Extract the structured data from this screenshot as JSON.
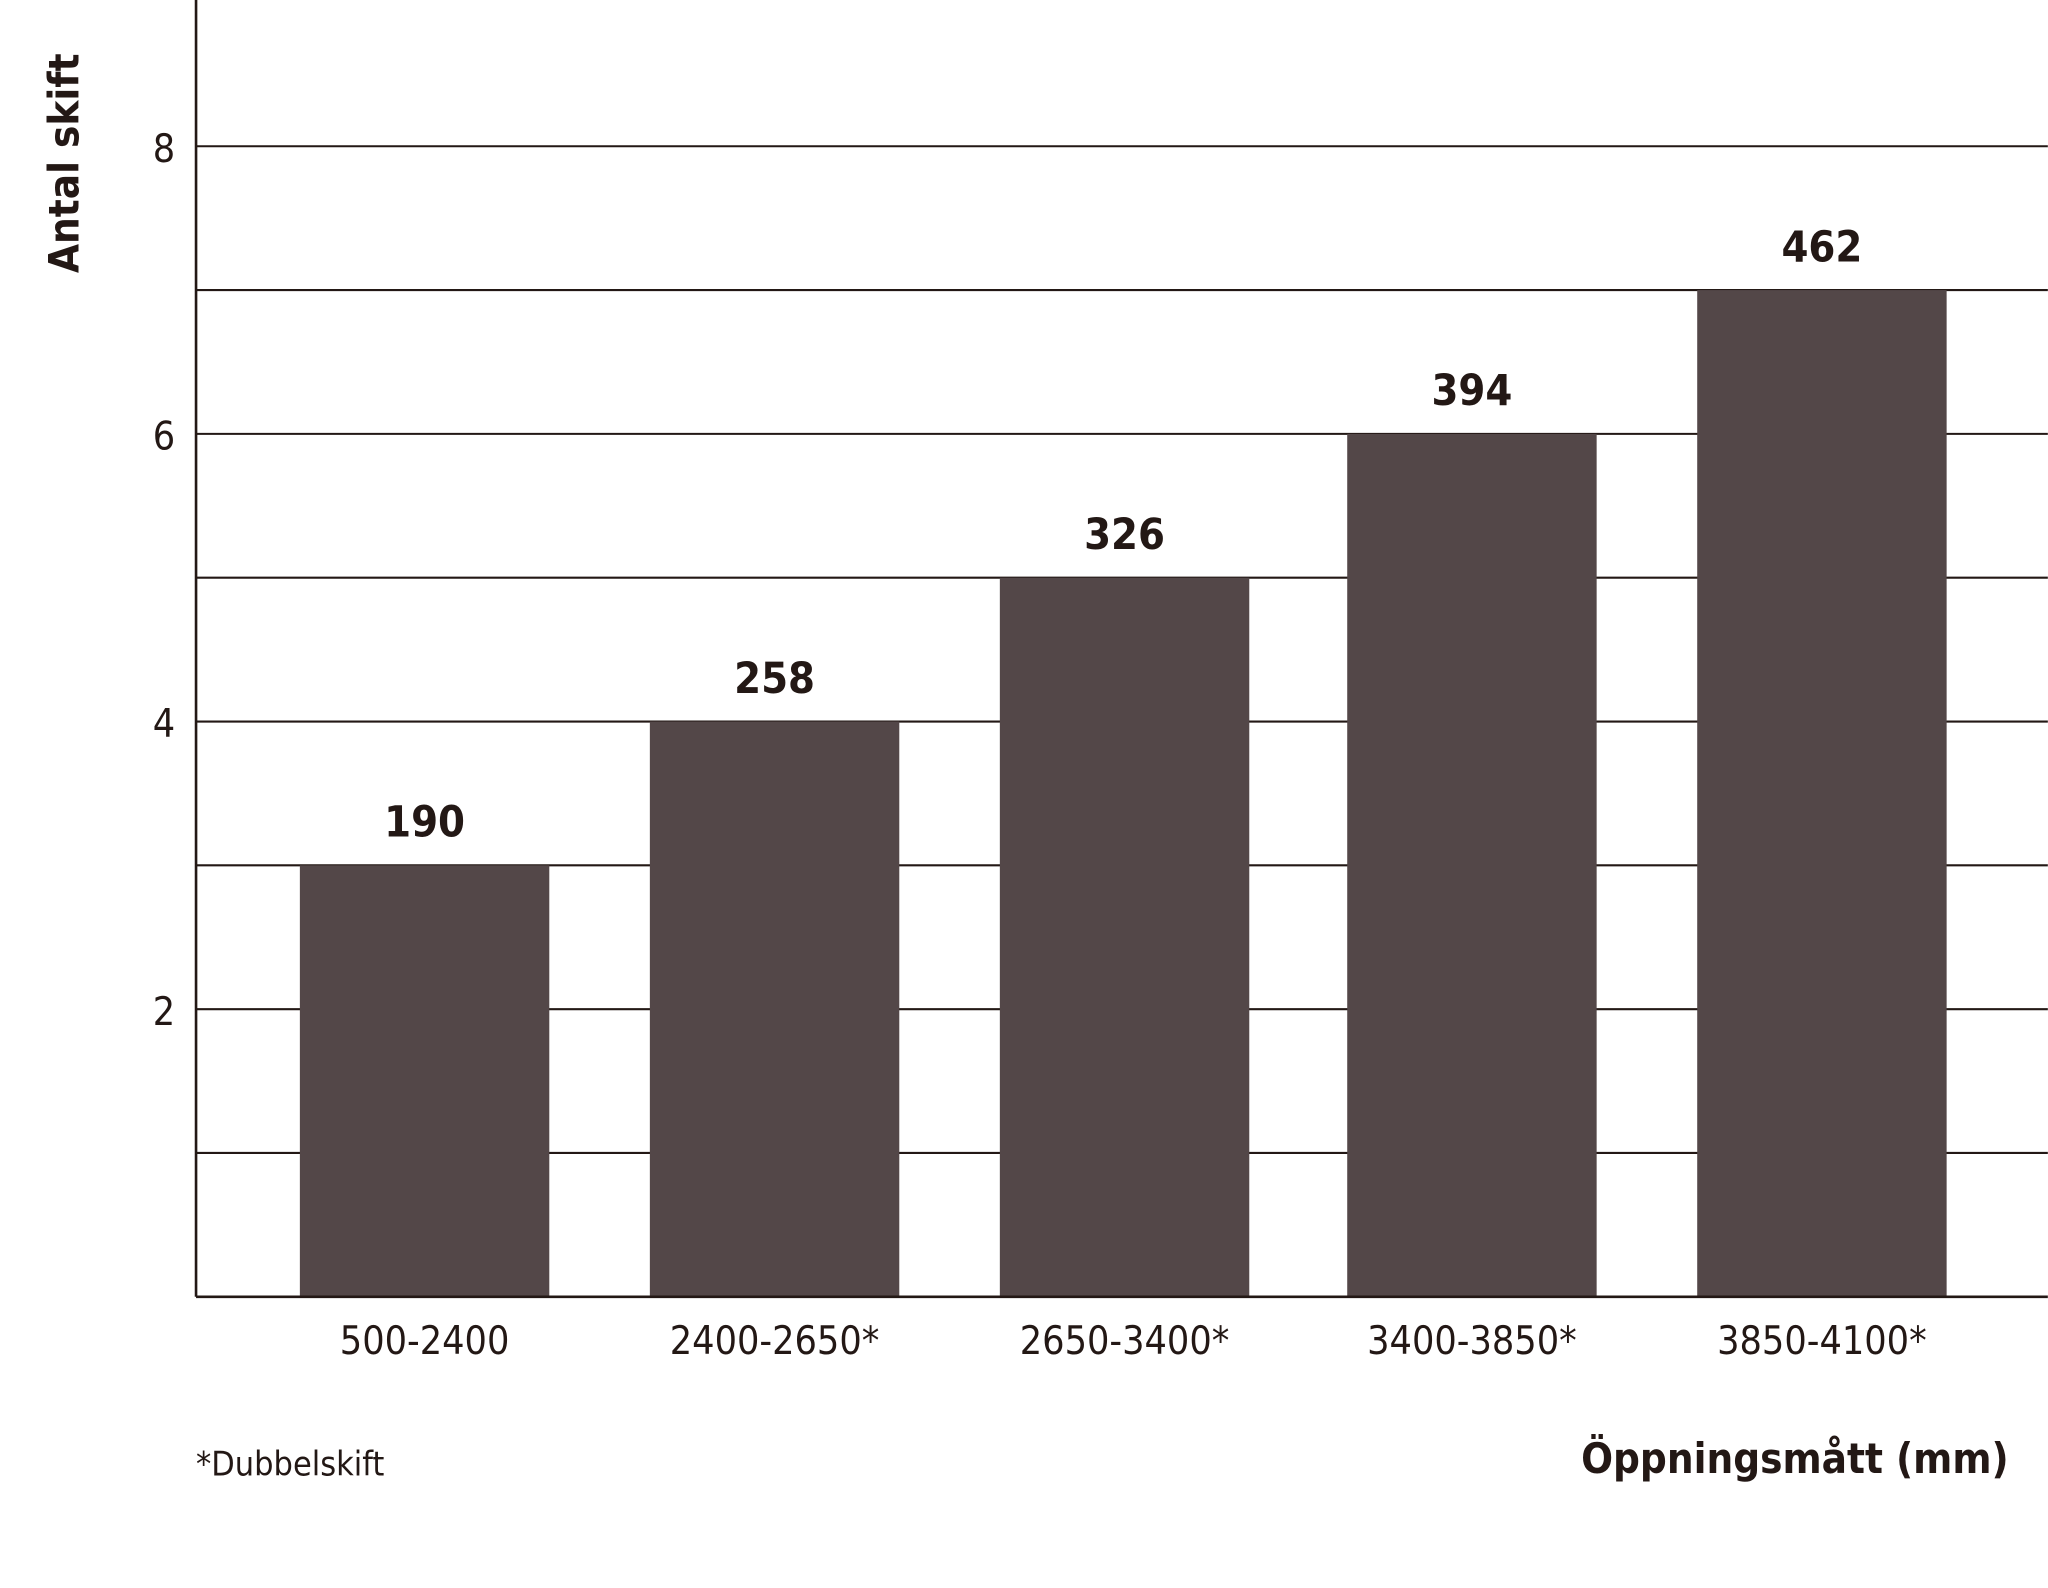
{
  "chart_data": {
    "type": "bar",
    "categories": [
      "500-2400",
      "2400-2650*",
      "2650-3400*",
      "3400-3850*",
      "3850-4100*"
    ],
    "values": [
      3,
      4,
      5,
      6,
      7
    ],
    "data_labels": [
      "190",
      "258",
      "326",
      "394",
      "462"
    ],
    "title": "",
    "xlabel": "Öppningsmått (mm)",
    "ylabel": "Antal skift",
    "ylim": [
      0,
      9
    ],
    "yticks": [
      2,
      4,
      6,
      8
    ],
    "ytick_labels": [
      "2",
      "4",
      "6",
      "8"
    ],
    "gridlines": [
      1,
      2,
      3,
      4,
      5,
      6,
      7,
      8
    ],
    "grid": true,
    "footnote": "*Dubbelskift",
    "colors": {
      "bar": "#534748",
      "axis": "#231815",
      "text": "#231815"
    }
  }
}
